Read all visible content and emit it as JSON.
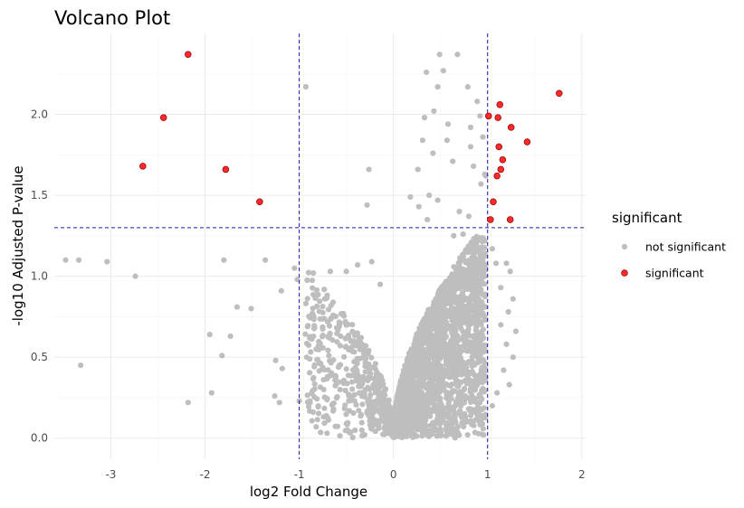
{
  "chart_data": {
    "type": "scatter",
    "title": "Volcano Plot",
    "xlabel": "log2 Fold Change",
    "ylabel": "-log10 Adjusted P-value",
    "xlim": [
      -3.6,
      2.05
    ],
    "ylim": [
      -0.13,
      2.5
    ],
    "x_ticks": [
      -3,
      -2,
      -1,
      0,
      1,
      2
    ],
    "y_ticks": [
      0.0,
      0.5,
      1.0,
      1.5,
      2.0
    ],
    "y_tick_labels": [
      "0.0",
      "0.5",
      "1.0",
      "1.5",
      "2.0"
    ],
    "grid": true,
    "legend_position": "right",
    "thresholds": {
      "vlines": [
        -1,
        1
      ],
      "hline": 1.3
    },
    "colors": {
      "not_significant": "#bebebe",
      "significant": "#ff2a2a",
      "significant_stroke": "#8b0000",
      "threshold": "#1a1ab0",
      "grid_major": "#ebebeb",
      "grid_minor": "#f5f5f5"
    },
    "legend": {
      "title": "significant",
      "items": [
        {
          "key": "not_significant",
          "label": "not significant"
        },
        {
          "key": "significant",
          "label": "significant"
        }
      ]
    },
    "series": [
      {
        "name": "significant",
        "points": [
          [
            -2.18,
            2.37
          ],
          [
            -2.44,
            1.98
          ],
          [
            -2.66,
            1.68
          ],
          [
            -1.78,
            1.66
          ],
          [
            -1.42,
            1.46
          ],
          [
            1.13,
            2.06
          ],
          [
            1.01,
            1.99
          ],
          [
            1.11,
            1.98
          ],
          [
            1.25,
            1.92
          ],
          [
            1.42,
            1.83
          ],
          [
            1.12,
            1.8
          ],
          [
            1.76,
            2.13
          ],
          [
            1.16,
            1.72
          ],
          [
            1.14,
            1.66
          ],
          [
            1.1,
            1.62
          ],
          [
            1.06,
            1.46
          ],
          [
            1.03,
            1.35
          ],
          [
            1.24,
            1.35
          ]
        ]
      },
      {
        "name": "not significant",
        "points": [
          [
            -3.48,
            1.1
          ],
          [
            -3.34,
            1.1
          ],
          [
            -3.04,
            1.09
          ],
          [
            -2.74,
            1.0
          ],
          [
            -3.32,
            0.45
          ],
          [
            -1.95,
            0.64
          ],
          [
            -1.82,
            0.51
          ],
          [
            -1.73,
            0.63
          ],
          [
            -1.66,
            0.81
          ],
          [
            -1.51,
            0.8
          ],
          [
            -1.36,
            1.1
          ],
          [
            -1.8,
            1.1
          ],
          [
            -2.18,
            0.22
          ],
          [
            -1.93,
            0.28
          ],
          [
            -1.25,
            0.48
          ],
          [
            -1.18,
            0.43
          ],
          [
            -1.26,
            0.26
          ],
          [
            -1.21,
            0.22
          ],
          [
            -0.93,
            2.17
          ],
          [
            -1.19,
            0.91
          ],
          [
            -1.05,
            1.05
          ],
          [
            -1.02,
            0.98
          ],
          [
            -0.85,
            1.02
          ],
          [
            -0.92,
            0.5
          ],
          [
            -0.82,
            0.55
          ],
          [
            -0.67,
            1.03
          ],
          [
            -0.5,
            1.03
          ],
          [
            -0.38,
            1.07
          ],
          [
            -0.23,
            1.09
          ],
          [
            -0.14,
            0.95
          ],
          [
            -0.26,
            1.66
          ],
          [
            -0.28,
            1.44
          ],
          [
            -1.0,
            0.23
          ],
          [
            -0.74,
            0.3
          ],
          [
            0.49,
            2.37
          ],
          [
            0.68,
            2.37
          ],
          [
            0.35,
            2.26
          ],
          [
            0.53,
            2.27
          ],
          [
            0.47,
            2.17
          ],
          [
            0.79,
            2.17
          ],
          [
            0.92,
            1.99
          ],
          [
            0.33,
            1.98
          ],
          [
            0.57,
            1.84
          ],
          [
            0.82,
            1.92
          ],
          [
            0.95,
            1.86
          ],
          [
            0.31,
            1.84
          ],
          [
            0.42,
            1.76
          ],
          [
            0.63,
            1.71
          ],
          [
            0.26,
            1.66
          ],
          [
            0.85,
            1.68
          ],
          [
            0.98,
            1.62
          ],
          [
            0.18,
            1.49
          ],
          [
            0.38,
            1.5
          ],
          [
            0.47,
            1.47
          ],
          [
            0.27,
            1.43
          ],
          [
            0.7,
            1.4
          ],
          [
            0.8,
            1.37
          ],
          [
            0.36,
            1.35
          ],
          [
            0.93,
            1.57
          ],
          [
            0.97,
            1.63
          ],
          [
            0.82,
            1.8
          ],
          [
            0.58,
            1.94
          ],
          [
            0.43,
            2.02
          ],
          [
            0.89,
            2.08
          ],
          [
            0.64,
            1.25
          ],
          [
            0.74,
            1.26
          ],
          [
            0.88,
            1.21
          ],
          [
            0.93,
            1.12
          ],
          [
            0.98,
            1.07
          ],
          [
            1.05,
            1.17
          ],
          [
            1.09,
            1.08
          ],
          [
            1.2,
            1.08
          ],
          [
            1.24,
            1.03
          ],
          [
            1.14,
            0.93
          ],
          [
            1.27,
            0.86
          ],
          [
            1.22,
            0.78
          ],
          [
            1.14,
            0.7
          ],
          [
            1.3,
            0.66
          ],
          [
            1.2,
            0.58
          ],
          [
            1.27,
            0.5
          ],
          [
            1.17,
            0.42
          ],
          [
            1.23,
            0.33
          ],
          [
            1.1,
            0.28
          ],
          [
            1.05,
            0.2
          ]
        ]
      }
    ]
  }
}
